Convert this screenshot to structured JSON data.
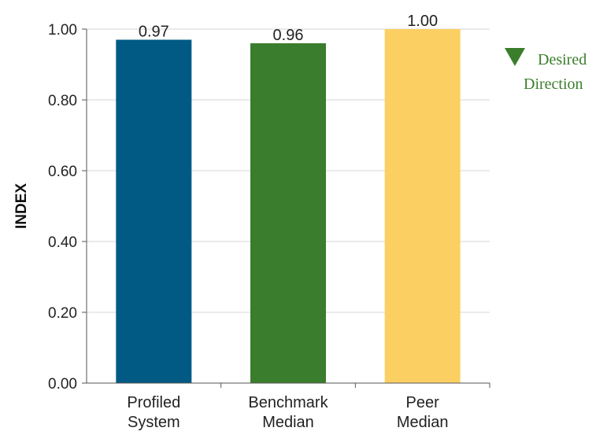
{
  "chart_data": {
    "type": "bar",
    "categories": [
      [
        "Profiled",
        "System"
      ],
      [
        "Benchmark",
        "Median"
      ],
      [
        "Peer",
        "Median"
      ]
    ],
    "values": [
      0.97,
      0.96,
      1.0
    ],
    "value_labels": [
      "0.97",
      "0.96",
      "1.00"
    ],
    "bar_colors": [
      "#005A84",
      "#3A7D2C",
      "#FCCF62"
    ],
    "title": "",
    "xlabel": "",
    "ylabel": "INDEX",
    "ylim": [
      0,
      1
    ],
    "yticks": [
      0,
      0.2,
      0.4,
      0.6,
      0.8,
      1.0
    ],
    "ytick_labels": [
      "0.00",
      "0.20",
      "0.40",
      "0.60",
      "0.80",
      "1.00"
    ],
    "grid": true,
    "legend": {
      "placement": "top-right",
      "marker": "down-triangle",
      "color": "#3A7D2C",
      "lines": [
        "Desired",
        "Direction"
      ]
    }
  }
}
